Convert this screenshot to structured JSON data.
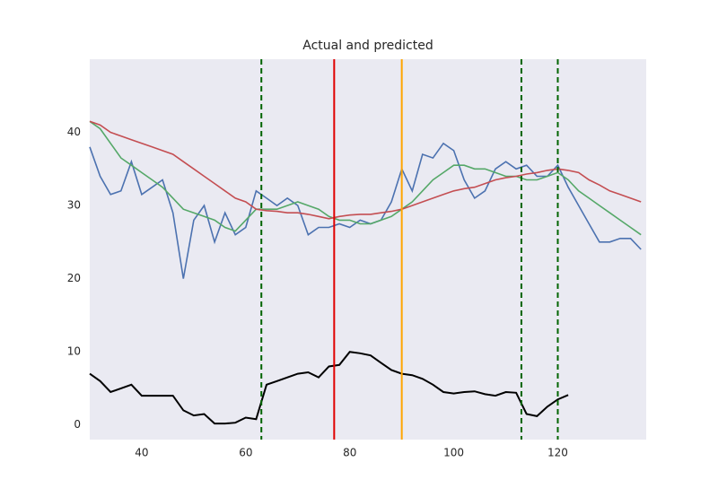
{
  "chart_data": {
    "type": "line",
    "title": "Actual and predicted",
    "x": [
      30,
      32,
      34,
      36,
      38,
      40,
      42,
      44,
      46,
      48,
      50,
      52,
      54,
      56,
      58,
      60,
      62,
      64,
      66,
      68,
      70,
      72,
      74,
      76,
      78,
      80,
      82,
      84,
      86,
      88,
      90,
      92,
      94,
      96,
      98,
      100,
      102,
      104,
      106,
      108,
      110,
      112,
      114,
      116,
      118,
      120,
      122,
      124,
      126,
      128,
      130,
      132,
      134,
      136
    ],
    "series": [
      {
        "color": "#4c72b0",
        "values": [
          38,
          34,
          31.5,
          32,
          36,
          31.5,
          32.5,
          33.5,
          29,
          20,
          28,
          30,
          25,
          29,
          26,
          27,
          32,
          31,
          30,
          31,
          30,
          26,
          27,
          27,
          27.5,
          27,
          28,
          27.5,
          28,
          30.5,
          35,
          32,
          37,
          36.5,
          38.5,
          37.5,
          33.5,
          31,
          32,
          35,
          36,
          35,
          35.5,
          34,
          34,
          35.5,
          32.5,
          30,
          27.5,
          25,
          25,
          25.5,
          25.5,
          24
        ]
      },
      {
        "color": "#55a868",
        "values": [
          41.5,
          40.5,
          38.5,
          36.5,
          35.5,
          34.5,
          33.5,
          32.5,
          31,
          29.5,
          29,
          28.5,
          28,
          27,
          26.5,
          28,
          29.5,
          29.5,
          29.5,
          30,
          30.5,
          30,
          29.5,
          28.5,
          28,
          28,
          27.5,
          27.5,
          28,
          28.5,
          29.5,
          30.5,
          32,
          33.5,
          34.5,
          35.5,
          35.5,
          35,
          35,
          34.5,
          34,
          34,
          33.5,
          33.5,
          34,
          34.5,
          33.5,
          32,
          31,
          30,
          29,
          28,
          27,
          26
        ]
      },
      {
        "color": "#c44e52",
        "values": [
          41.5,
          41,
          40,
          39.5,
          39,
          38.5,
          38,
          37.5,
          37,
          36,
          35,
          34,
          33,
          32,
          31,
          30.5,
          29.5,
          29.3,
          29.2,
          29,
          29,
          28.8,
          28.5,
          28.2,
          28.5,
          28.7,
          28.8,
          28.8,
          29,
          29.2,
          29.5,
          30,
          30.5,
          31,
          31.5,
          32,
          32.3,
          32.5,
          33,
          33.5,
          33.8,
          34,
          34.3,
          34.5,
          34.8,
          35,
          34.8,
          34.5,
          33.5,
          32.8,
          32,
          31.5,
          31,
          30.5
        ]
      },
      {
        "color": "#000000",
        "values": [
          7,
          6,
          4.5,
          5,
          5.5,
          4,
          4,
          4,
          4,
          2,
          1.3,
          1.5,
          0.2,
          0.2,
          0.3,
          1,
          0.8,
          5.5,
          6,
          6.5,
          7,
          7.2,
          6.5,
          8,
          8.2,
          10,
          9.8,
          9.5,
          8.5,
          7.5,
          7,
          6.8,
          6.3,
          5.5,
          4.5,
          4.3,
          4.5,
          4.6,
          4.2,
          4,
          4.5,
          4.4,
          1.5,
          1.2,
          2.5,
          3.5,
          4.1,
          null,
          null,
          null,
          null,
          null,
          null,
          null
        ]
      }
    ],
    "vlines": [
      {
        "x": 63,
        "color": "#006400",
        "dashed": true
      },
      {
        "x": 77,
        "color": "#e00000",
        "dashed": false
      },
      {
        "x": 90,
        "color": "#ffa500",
        "dashed": false
      },
      {
        "x": 113,
        "color": "#006400",
        "dashed": true
      },
      {
        "x": 120,
        "color": "#006400",
        "dashed": true
      }
    ],
    "xlim": [
      30,
      137
    ],
    "ylim": [
      -2,
      50
    ],
    "xticks": [
      40,
      60,
      80,
      100,
      120
    ],
    "yticks": [
      0,
      10,
      20,
      30,
      40
    ],
    "background": "#eaeaf2",
    "grid": false
  }
}
